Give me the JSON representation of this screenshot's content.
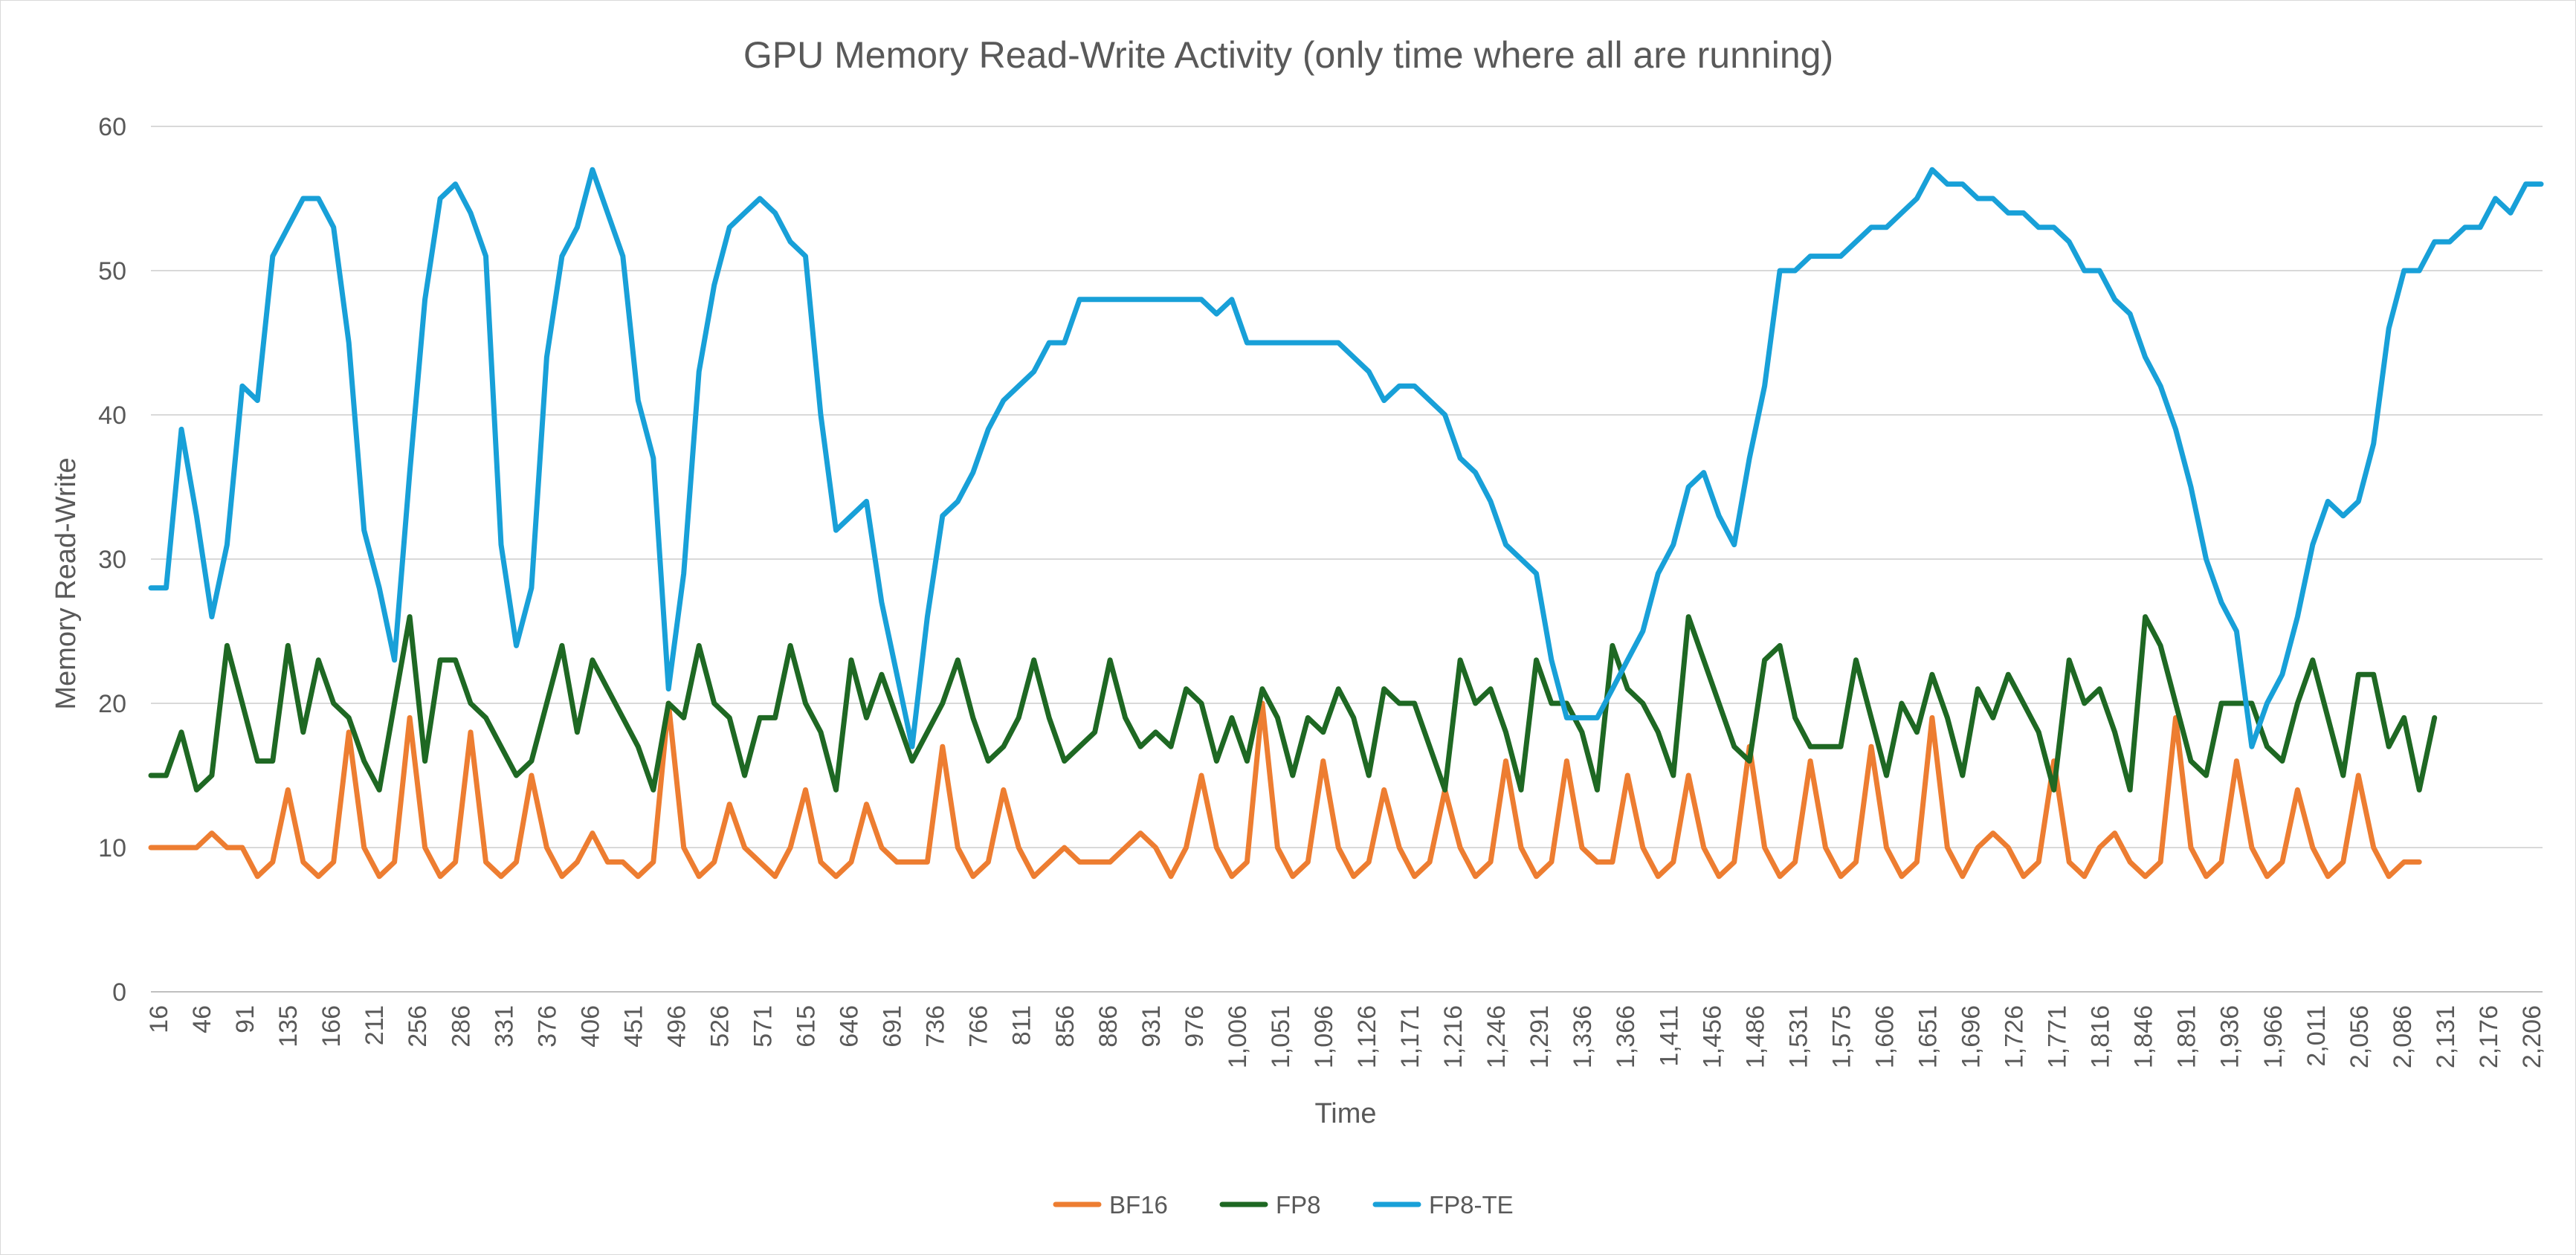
{
  "chart_data": {
    "type": "line",
    "title": "GPU Memory Read-Write Activity (only time where all are running)",
    "xlabel": "Time",
    "ylabel": "Memory Read-Write",
    "ylim": [
      0,
      60
    ],
    "yticks": [
      "0",
      "10",
      "20",
      "30",
      "40",
      "50",
      "60"
    ],
    "grid": true,
    "legend_position": "bottom",
    "x_tick_labels": [
      "16",
      "46",
      "91",
      "135",
      "166",
      "211",
      "256",
      "286",
      "331",
      "376",
      "406",
      "451",
      "496",
      "526",
      "571",
      "615",
      "646",
      "691",
      "736",
      "766",
      "811",
      "856",
      "886",
      "931",
      "976",
      "1,006",
      "1,051",
      "1,096",
      "1,126",
      "1,171",
      "1,216",
      "1,246",
      "1,291",
      "1,336",
      "1,366",
      "1,411",
      "1,456",
      "1,486",
      "1,531",
      "1,575",
      "1,606",
      "1,651",
      "1,696",
      "1,726",
      "1,771",
      "1,816",
      "1,846",
      "1,891",
      "1,936",
      "1,966",
      "2,011",
      "2,056",
      "2,086",
      "2,131",
      "2,176",
      "2,206"
    ],
    "series": [
      {
        "name": "BF16",
        "color": "#ed7d31",
        "values": [
          10,
          10,
          10,
          10,
          11,
          10,
          10,
          8,
          9,
          14,
          9,
          8,
          9,
          18,
          10,
          8,
          9,
          19,
          10,
          8,
          9,
          18,
          9,
          8,
          9,
          15,
          10,
          8,
          9,
          11,
          9,
          9,
          8,
          9,
          20,
          10,
          8,
          9,
          13,
          10,
          9,
          8,
          10,
          14,
          9,
          8,
          9,
          13,
          10,
          9,
          9,
          9,
          17,
          10,
          8,
          9,
          14,
          10,
          8,
          9,
          10,
          9,
          9,
          9,
          10,
          11,
          10,
          8,
          10,
          15,
          10,
          8,
          9,
          20,
          10,
          8,
          9,
          16,
          10,
          8,
          9,
          14,
          10,
          8,
          9,
          14,
          10,
          8,
          9,
          16,
          10,
          8,
          9,
          16,
          10,
          9,
          9,
          15,
          10,
          8,
          9,
          15,
          10,
          8,
          9,
          17,
          10,
          8,
          9,
          16,
          10,
          8,
          9,
          17,
          10,
          8,
          9,
          19,
          10,
          8,
          10,
          11,
          10,
          8,
          9,
          16,
          9,
          8,
          10,
          11,
          9,
          8,
          9,
          19,
          10,
          8,
          9,
          16,
          10,
          8,
          9,
          14,
          10,
          8,
          9,
          15,
          10,
          8,
          9,
          9
        ]
      },
      {
        "name": "FP8",
        "color": "#1e6823",
        "values": [
          15,
          15,
          18,
          14,
          15,
          24,
          20,
          16,
          16,
          24,
          18,
          23,
          20,
          19,
          16,
          14,
          20,
          26,
          16,
          23,
          23,
          20,
          19,
          17,
          15,
          16,
          20,
          24,
          18,
          23,
          21,
          19,
          17,
          14,
          20,
          19,
          24,
          20,
          19,
          15,
          19,
          19,
          24,
          20,
          18,
          14,
          23,
          19,
          22,
          19,
          16,
          18,
          20,
          23,
          19,
          16,
          17,
          19,
          23,
          19,
          16,
          17,
          18,
          23,
          19,
          17,
          18,
          17,
          21,
          20,
          16,
          19,
          16,
          21,
          19,
          15,
          19,
          18,
          21,
          19,
          15,
          21,
          20,
          20,
          17,
          14,
          23,
          20,
          21,
          18,
          14,
          23,
          20,
          20,
          18,
          14,
          24,
          21,
          20,
          18,
          15,
          26,
          23,
          20,
          17,
          16,
          23,
          24,
          19,
          17,
          17,
          17,
          23,
          19,
          15,
          20,
          18,
          22,
          19,
          15,
          21,
          19,
          22,
          20,
          18,
          14,
          23,
          20,
          21,
          18,
          14,
          26,
          24,
          20,
          16,
          15,
          20,
          20,
          20,
          17,
          16,
          20,
          23,
          19,
          15,
          22,
          22,
          17,
          19,
          14,
          19
        ]
      },
      {
        "name": "FP8-TE",
        "color": "#18a0d8",
        "values": [
          28,
          28,
          39,
          33,
          26,
          31,
          42,
          41,
          51,
          53,
          55,
          55,
          53,
          45,
          32,
          28,
          23,
          36,
          48,
          55,
          56,
          54,
          51,
          31,
          24,
          28,
          44,
          51,
          53,
          57,
          54,
          51,
          41,
          37,
          21,
          29,
          43,
          49,
          53,
          54,
          55,
          54,
          52,
          51,
          40,
          32,
          33,
          34,
          27,
          22,
          17,
          26,
          33,
          34,
          36,
          39,
          41,
          42,
          43,
          45,
          45,
          48,
          48,
          48,
          48,
          48,
          48,
          48,
          48,
          48,
          47,
          48,
          45,
          45,
          45,
          45,
          45,
          45,
          45,
          44,
          43,
          41,
          42,
          42,
          41,
          40,
          37,
          36,
          34,
          31,
          30,
          29,
          23,
          19,
          19,
          19,
          21,
          23,
          25,
          29,
          31,
          35,
          36,
          33,
          31,
          37,
          42,
          50,
          50,
          51,
          51,
          51,
          52,
          53,
          53,
          54,
          55,
          57,
          56,
          56,
          55,
          55,
          54,
          54,
          53,
          53,
          52,
          50,
          50,
          48,
          47,
          44,
          42,
          39,
          35,
          30,
          27,
          25,
          17,
          20,
          22,
          26,
          31,
          34,
          33,
          34,
          38,
          46,
          50,
          50,
          52,
          52,
          53,
          53,
          55,
          54,
          56,
          56
        ]
      }
    ]
  }
}
